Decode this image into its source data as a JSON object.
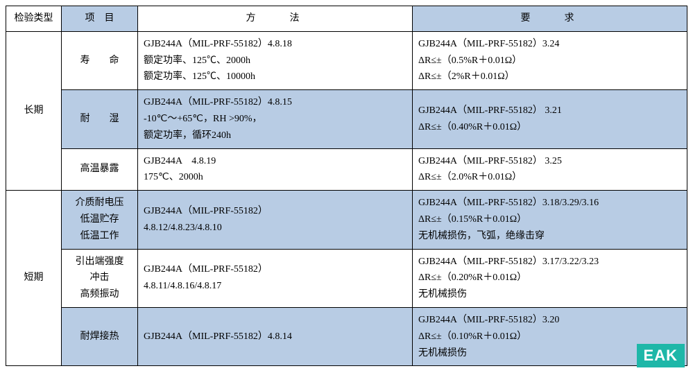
{
  "headers": {
    "type": "检验类型",
    "item": "项　目",
    "method": "方　　法",
    "requirement": "要　　求"
  },
  "colors": {
    "band": "#b8cce4",
    "border": "#000000",
    "background": "#ffffff",
    "logo_bg": "#1eb7a8",
    "logo_fg": "#ffffff"
  },
  "groups": [
    {
      "type_label": "长期",
      "rows": [
        {
          "banded": false,
          "item": "寿　　命",
          "method": "GJB244A（MIL-PRF-55182）4.8.18\n额定功率、125℃、2000h\n额定功率、125℃、10000h",
          "requirement": "GJB244A（MIL-PRF-55182）3.24\nΔR≤±（0.5%R＋0.01Ω）\nΔR≤±（2%R＋0.01Ω）"
        },
        {
          "banded": true,
          "item": "耐　　湿",
          "method": "GJB244A（MIL-PRF-55182）4.8.15\n-10℃～+65℃，RH >90%，\n额定功率，循环240h",
          "requirement": "GJB244A（MIL-PRF-55182） 3.21\nΔR≤±（0.40%R＋0.01Ω）"
        },
        {
          "banded": false,
          "item": "高温暴露",
          "method": "GJB244A　4.8.19\n175℃、2000h",
          "requirement": "GJB244A（MIL-PRF-55182） 3.25\nΔR≤±（2.0%R＋0.01Ω）"
        }
      ]
    },
    {
      "type_label": "短期",
      "rows": [
        {
          "banded": true,
          "item": "介质耐电压\n低温贮存\n低温工作",
          "method": "GJB244A（MIL-PRF-55182）\n4.8.12/4.8.23/4.8.10",
          "requirement": "GJB244A（MIL-PRF-55182）3.18/3.29/3.16\nΔR≤±（0.15%R＋0.01Ω）\n无机械损伤，飞弧，绝缘击穿"
        },
        {
          "banded": false,
          "item": "引出端强度\n冲击\n高频振动",
          "method": "GJB244A（MIL-PRF-55182）\n4.8.11/4.8.16/4.8.17",
          "requirement": "GJB244A（MIL-PRF-55182）3.17/3.22/3.23\nΔR≤±（0.20%R＋0.01Ω）\n无机械损伤"
        },
        {
          "banded": true,
          "item": "耐焊接热",
          "method": "GJB244A（MIL-PRF-55182）4.8.14",
          "requirement": "GJB244A（MIL-PRF-55182）3.20\nΔR≤±（0.10%R＋0.01Ω）\n无机械损伤"
        }
      ]
    }
  ],
  "logo": "EAK"
}
